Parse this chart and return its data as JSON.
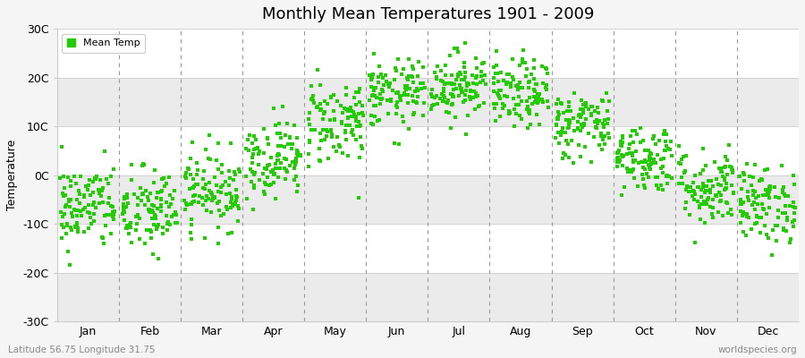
{
  "title": "Monthly Mean Temperatures 1901 - 2009",
  "ylabel": "Temperature",
  "ylim": [
    -30,
    30
  ],
  "yticks": [
    -30,
    -20,
    -10,
    0,
    10,
    20,
    30
  ],
  "ytick_labels": [
    "-30C",
    "-20C",
    "-10C",
    "0C",
    "10C",
    "20C",
    "30C"
  ],
  "months": [
    "Jan",
    "Feb",
    "Mar",
    "Apr",
    "May",
    "Jun",
    "Jul",
    "Aug",
    "Sep",
    "Oct",
    "Nov",
    "Dec"
  ],
  "dot_color": "#22cc00",
  "background_color": "#f5f5f5",
  "plot_bg": "#ffffff",
  "band_colors": [
    "#ffffff",
    "#ebebeb"
  ],
  "footer_left": "Latitude 56.75 Longitude 31.75",
  "footer_right": "worldspecies.org",
  "legend_label": "Mean Temp",
  "mean_temps": [
    -6.5,
    -7.5,
    -3.0,
    3.5,
    11.0,
    16.5,
    18.5,
    16.5,
    10.5,
    3.5,
    -2.5,
    -6.0
  ],
  "spread": [
    4.5,
    4.5,
    4.0,
    4.0,
    4.5,
    3.5,
    3.5,
    3.5,
    3.5,
    3.5,
    4.0,
    4.0
  ],
  "n_years": 109,
  "title_fontsize": 13,
  "axis_fontsize": 9,
  "ylabel_fontsize": 9
}
